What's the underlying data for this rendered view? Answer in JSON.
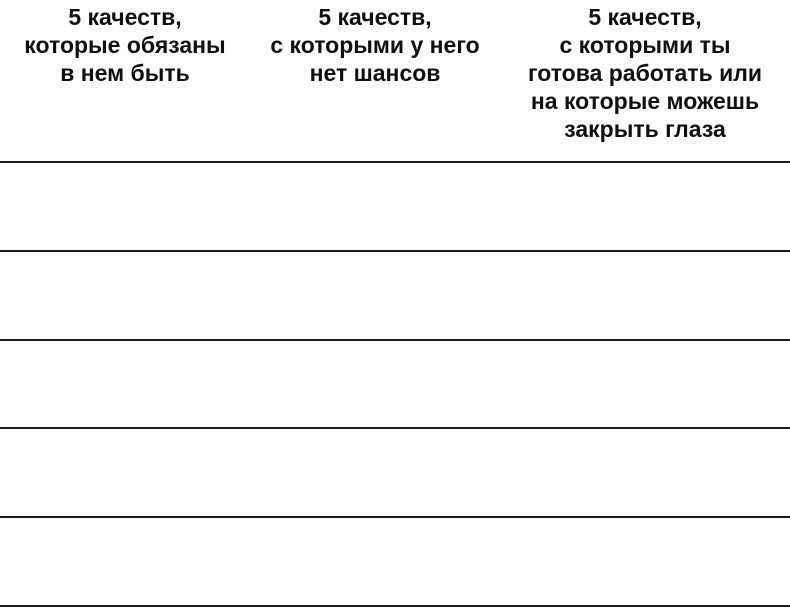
{
  "table": {
    "columns": [
      {
        "id": "required-qualities",
        "header": "5 качеств,\nкоторые обязаны\nв нем быть"
      },
      {
        "id": "dealbreaker-qualities",
        "header": "5 качеств,\nс которыми у него\nнет шансов"
      },
      {
        "id": "tolerable-qualities",
        "header": "5 качеств,\nс которыми ты\nготова работать или\nна которые можешь\nзакрыть глаза"
      }
    ],
    "rows": [
      "",
      "",
      "",
      "",
      ""
    ],
    "row_count": 5
  },
  "colors": {
    "text": "#0f0f0f",
    "line": "#1a1a1a",
    "background": "#ffffff"
  }
}
